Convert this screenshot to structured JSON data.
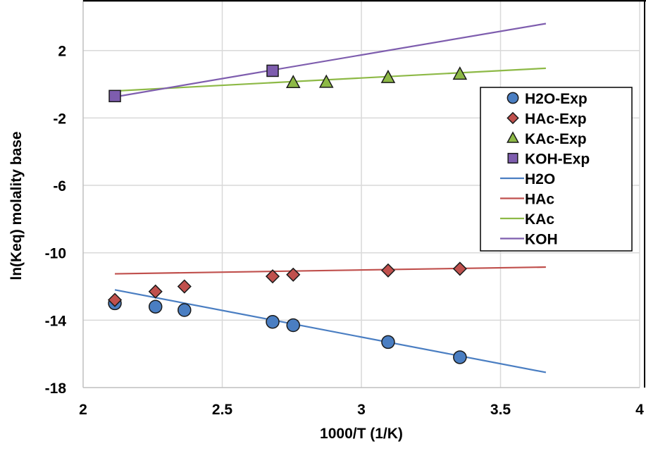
{
  "chart_data": {
    "type": "scatter",
    "title": "",
    "xlabel": "1000/T (1/K)",
    "ylabel": "ln(Keq) molality base",
    "xlim": [
      2,
      4
    ],
    "ylim": [
      -18,
      5
    ],
    "xticks": [
      2,
      2.5,
      3,
      3.5,
      4
    ],
    "xtick_labels": [
      "2",
      "2.5",
      "3",
      "3.5",
      "4"
    ],
    "yticks": [
      2,
      -2,
      -6,
      -10,
      -14,
      -18
    ],
    "ytick_labels": [
      "2",
      "-2",
      "-6",
      "-10",
      "-14",
      "-18"
    ],
    "grid": true,
    "legend_position": "right",
    "series": [
      {
        "name": "H2O-Exp",
        "kind": "marker",
        "marker": "circle",
        "color": "#4A7EC2",
        "x": [
          2.114,
          2.26,
          2.364,
          2.681,
          2.755,
          3.096,
          3.354
        ],
        "y": [
          -13.0,
          -13.2,
          -13.4,
          -14.1,
          -14.3,
          -15.3,
          -16.2
        ]
      },
      {
        "name": "HAc-Exp",
        "kind": "marker",
        "marker": "diamond",
        "color": "#C0504D",
        "x": [
          2.114,
          2.26,
          2.364,
          2.681,
          2.755,
          3.096,
          3.354
        ],
        "y": [
          -12.8,
          -12.3,
          -12.0,
          -11.4,
          -11.3,
          -11.05,
          -10.95
        ]
      },
      {
        "name": "KAc-Exp",
        "kind": "marker",
        "marker": "triangle",
        "color": "#8DB946",
        "x": [
          2.755,
          2.874,
          3.096,
          3.354
        ],
        "y": [
          0.1,
          0.12,
          0.4,
          0.6
        ]
      },
      {
        "name": "KOH-Exp",
        "kind": "marker",
        "marker": "square",
        "color": "#7E5DAE",
        "x": [
          2.114,
          2.681
        ],
        "y": [
          -0.7,
          0.8
        ]
      },
      {
        "name": "H2O",
        "kind": "line",
        "color": "#4A7EC2",
        "x": [
          2.114,
          3.663
        ],
        "y": [
          -12.2,
          -17.1
        ]
      },
      {
        "name": "HAc",
        "kind": "line",
        "color": "#C0504D",
        "x": [
          2.114,
          3.663
        ],
        "y": [
          -11.25,
          -10.85
        ]
      },
      {
        "name": "KAc",
        "kind": "line",
        "color": "#8DB946",
        "x": [
          2.114,
          3.663
        ],
        "y": [
          -0.4,
          0.95
        ]
      },
      {
        "name": "KOH",
        "kind": "line",
        "color": "#7E5DAE",
        "x": [
          2.114,
          3.663
        ],
        "y": [
          -0.75,
          3.6
        ]
      }
    ]
  }
}
